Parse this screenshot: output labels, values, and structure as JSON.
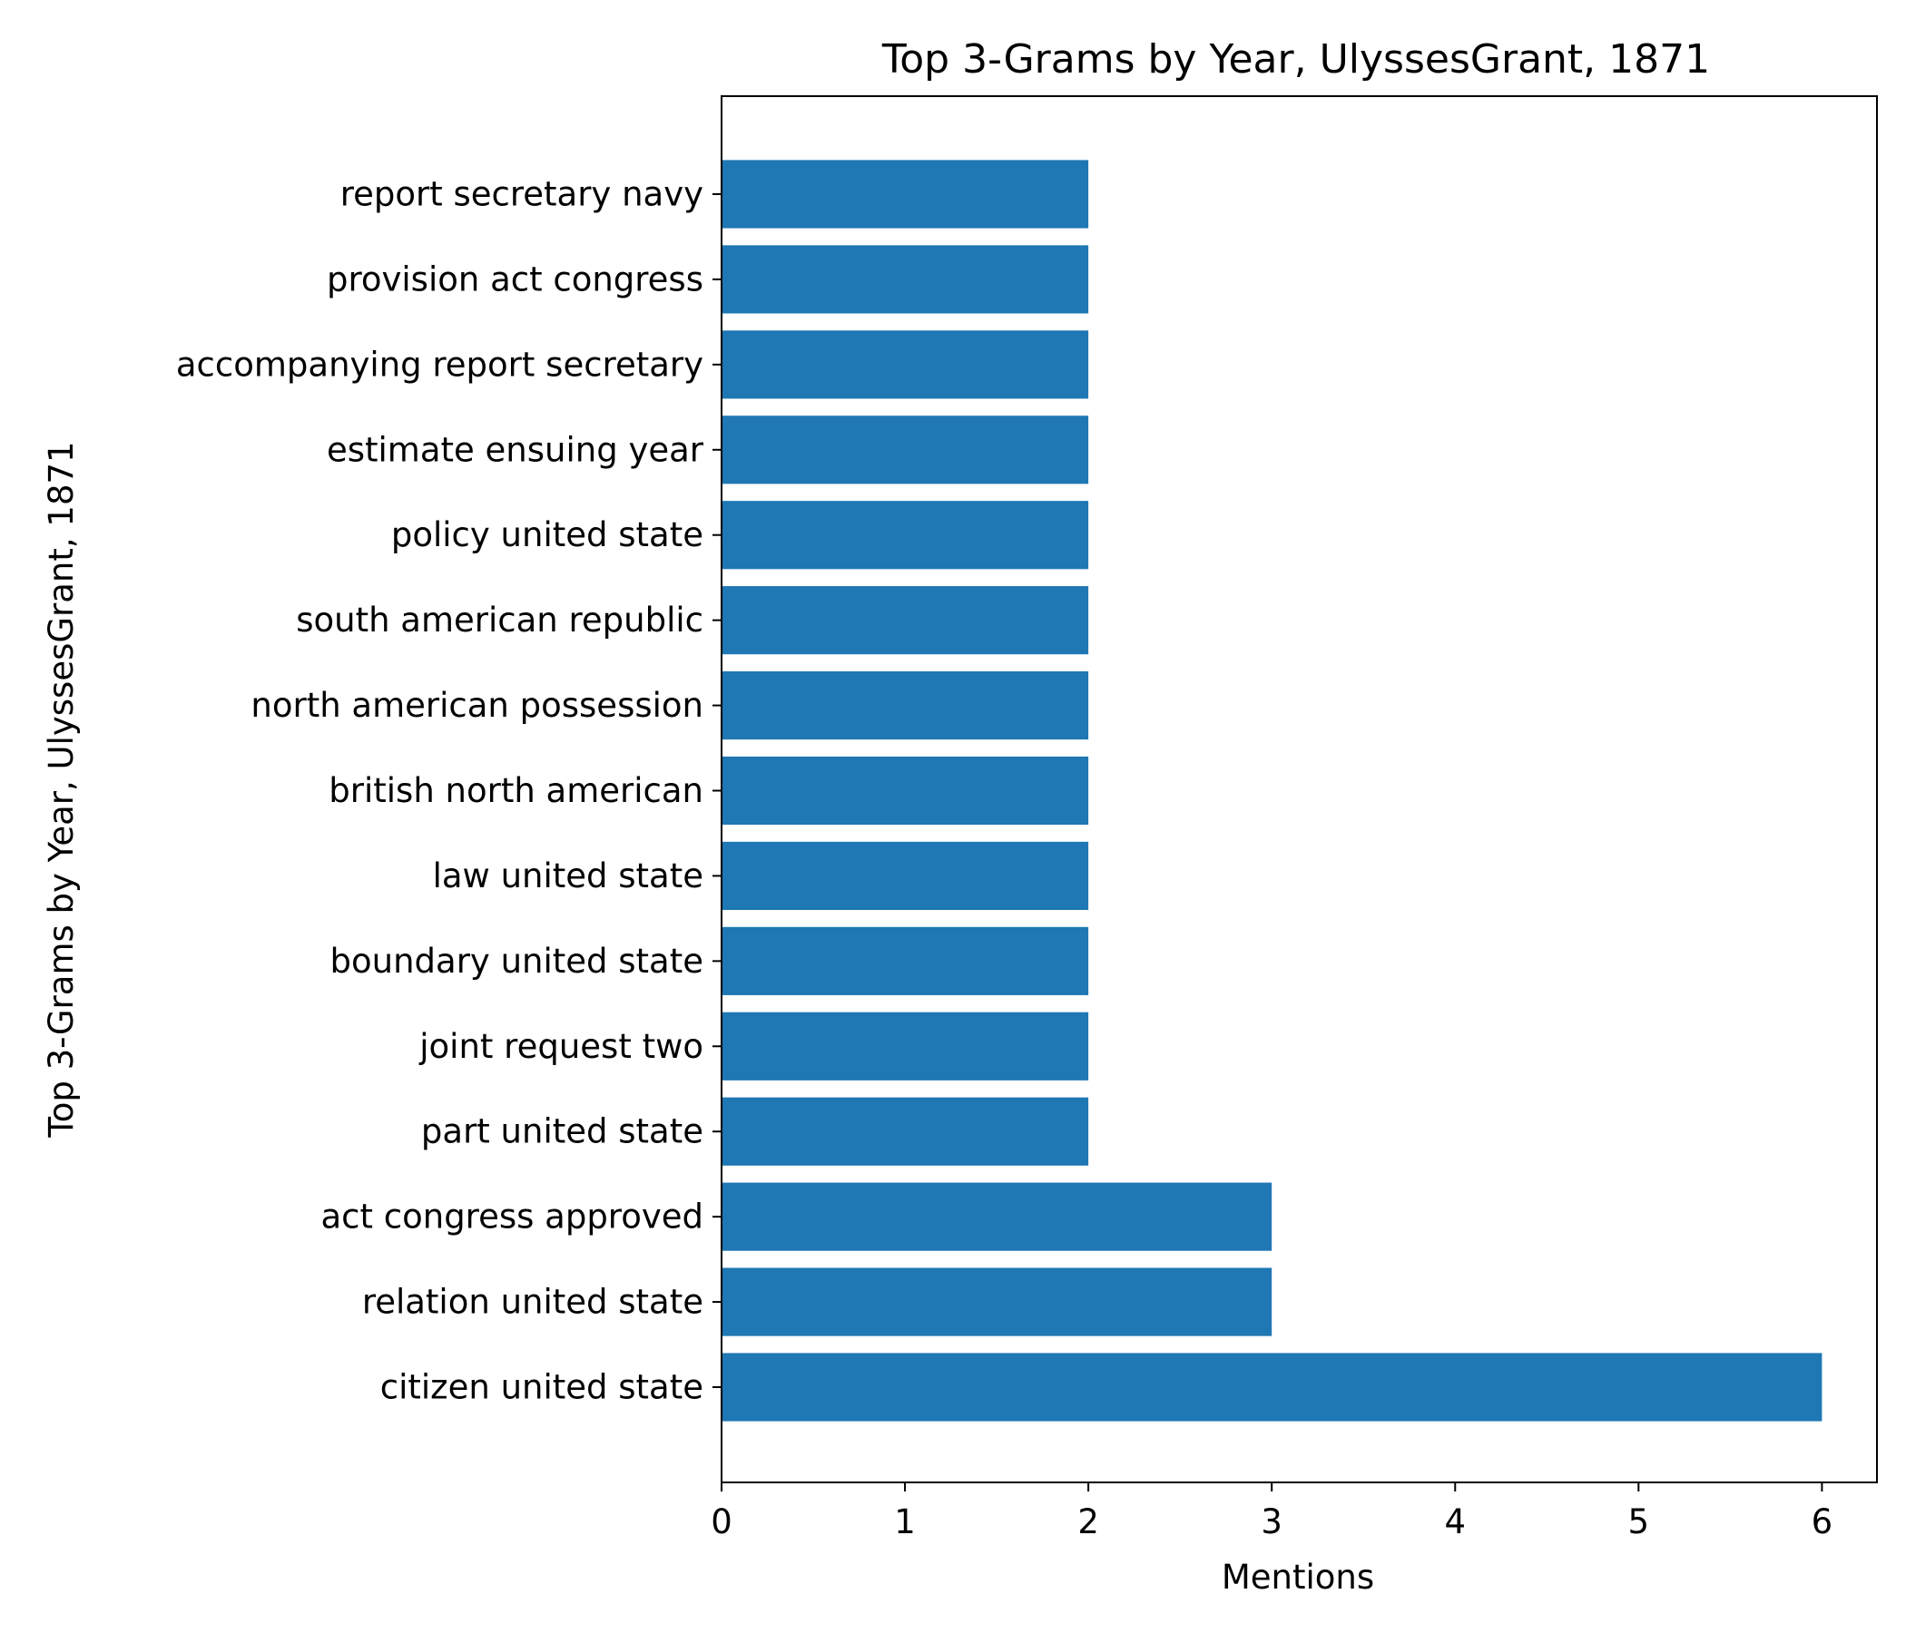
{
  "chart_data": {
    "type": "bar",
    "orientation": "horizontal",
    "title": "Top 3-Grams by Year, UlyssesGrant, 1871",
    "xlabel": "Mentions",
    "ylabel": "Top 3-Grams by Year, UlyssesGrant, 1871",
    "categories": [
      "citizen united state",
      "relation united state",
      "act congress approved",
      "part united state",
      "joint request two",
      "boundary united state",
      "law united state",
      "british north american",
      "north american possession",
      "south american republic",
      "policy united state",
      "estimate ensuing year",
      "accompanying report secretary",
      "provision act congress",
      "report secretary navy"
    ],
    "values": [
      6,
      3,
      3,
      2,
      2,
      2,
      2,
      2,
      2,
      2,
      2,
      2,
      2,
      2,
      2
    ],
    "xlim": [
      0,
      6.3
    ],
    "xticks": [
      0,
      1,
      2,
      3,
      4,
      5,
      6
    ],
    "grid": false,
    "legend": "none",
    "bar_color": "#1f77b4"
  }
}
